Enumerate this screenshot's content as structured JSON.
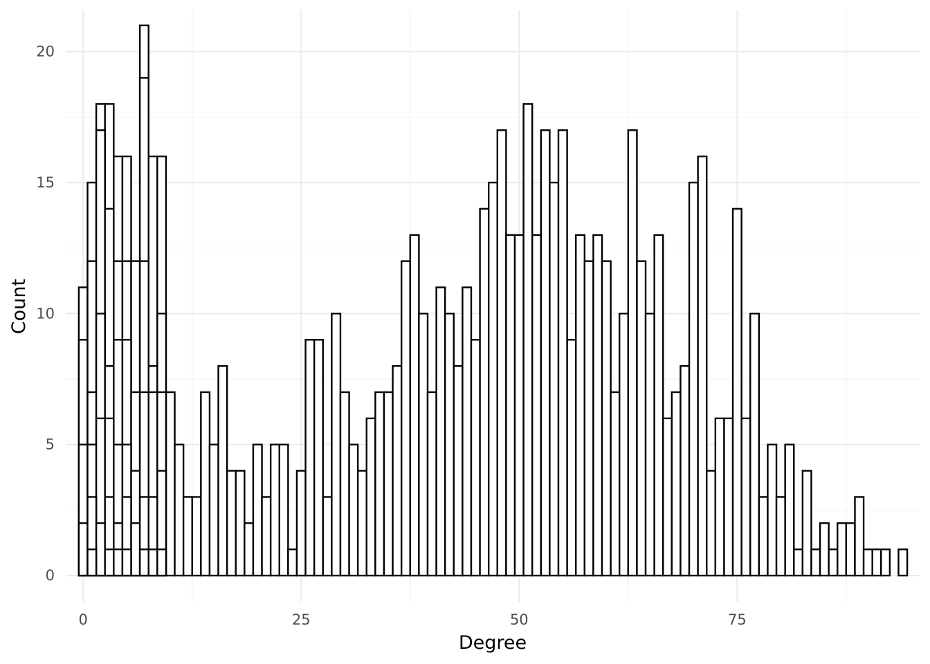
{
  "chart_data": {
    "type": "bar",
    "xlabel": "Degree",
    "ylabel": "Count",
    "xlim": [
      -2,
      96
    ],
    "ylim": [
      -1,
      21.6
    ],
    "x_ticks": [
      0,
      25,
      50,
      75
    ],
    "y_ticks": [
      0,
      5,
      10,
      15,
      20
    ],
    "x_minor": [
      12.5,
      37.5,
      62.5,
      87.5
    ],
    "y_minor": [
      2.5,
      7.5,
      12.5,
      17.5
    ],
    "bin_width": 1,
    "grid": true,
    "bar_fill": "#ffffff",
    "bar_stroke": "#000000",
    "series": [
      {
        "x": [
          0,
          1,
          2,
          3,
          4,
          5,
          6,
          7,
          8,
          9,
          10,
          11,
          12,
          13,
          14,
          15,
          16,
          17,
          18,
          19,
          20,
          21,
          22,
          23,
          24,
          25,
          26,
          27,
          28,
          29,
          30,
          31,
          32,
          33,
          34,
          35,
          36,
          37,
          38,
          39,
          40,
          41,
          42,
          43,
          44,
          45,
          46,
          47,
          48,
          49,
          50,
          51,
          52,
          53,
          54,
          55,
          56,
          57,
          58,
          59,
          60,
          61,
          62,
          63,
          64,
          65,
          66,
          67,
          68,
          69,
          70,
          71,
          72,
          73,
          74,
          75,
          76,
          77,
          78,
          79,
          80,
          81,
          82,
          83,
          84,
          85,
          86,
          87,
          88,
          89,
          90,
          91,
          92,
          93,
          94
        ],
        "values": [
          11,
          15,
          18,
          18,
          16,
          16,
          12,
          21,
          16,
          16,
          7,
          5,
          3,
          3,
          7,
          5,
          8,
          4,
          4,
          2,
          5,
          3,
          5,
          5,
          1,
          4,
          9,
          9,
          3,
          10,
          7,
          5,
          4,
          6,
          7,
          7,
          8,
          12,
          13,
          10,
          7,
          11,
          10,
          8,
          11,
          9,
          14,
          15,
          17,
          13,
          13,
          18,
          13,
          17,
          15,
          17,
          9,
          13,
          12,
          13,
          12,
          7,
          10,
          17,
          12,
          10,
          13,
          6,
          7,
          8,
          15,
          16,
          4,
          6,
          6,
          14,
          6,
          10,
          3,
          5,
          3,
          5,
          1,
          4,
          1,
          2,
          1,
          2,
          2,
          3,
          1,
          1,
          1,
          0,
          1
        ]
      },
      {
        "x": [
          0,
          1,
          2,
          3,
          4,
          5,
          6,
          7,
          8,
          9
        ],
        "values": [
          9,
          12,
          17,
          14,
          12,
          12,
          12,
          19,
          8,
          10
        ]
      },
      {
        "x": [
          0,
          1,
          2,
          3,
          4,
          5,
          6,
          7,
          8,
          9
        ],
        "values": [
          5,
          7,
          10,
          8,
          9,
          9,
          7,
          12,
          7,
          7
        ]
      },
      {
        "x": [
          0,
          1,
          2,
          3,
          4,
          5,
          6,
          7,
          8,
          9
        ],
        "values": [
          2,
          5,
          6,
          6,
          5,
          5,
          4,
          7,
          3,
          4
        ]
      },
      {
        "x": [
          0,
          1,
          2,
          3,
          4,
          5,
          6,
          7,
          8,
          9
        ],
        "values": [
          0,
          3,
          2,
          3,
          2,
          3,
          2,
          3,
          1,
          1
        ]
      },
      {
        "x": [
          0,
          1,
          2,
          3,
          4,
          5,
          6,
          7,
          8,
          9
        ],
        "values": [
          0,
          1,
          0,
          1,
          1,
          1,
          0,
          1,
          0,
          1
        ]
      }
    ]
  }
}
